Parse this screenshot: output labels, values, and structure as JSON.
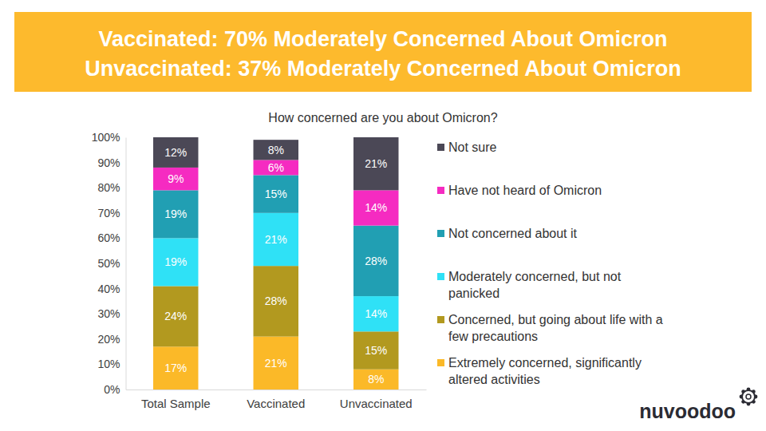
{
  "chart_data": {
    "type": "bar",
    "stacked": true,
    "title": [
      "Vaccinated: 70% Moderately Concerned About Omicron",
      "Unvaccinated: 37% Moderately Concerned About Omicron"
    ],
    "subtitle": "How concerned are you about Omicron?",
    "annotations": [
      "nuvoodoo"
    ],
    "categories": [
      "Total Sample",
      "Vaccinated",
      "Unvaccinated"
    ],
    "series": [
      {
        "name": "Extremely concerned, significantly altered activities",
        "color": "#fbb928",
        "values": [
          17,
          21,
          8
        ],
        "value_labels": [
          "17%",
          "21%",
          "8%"
        ]
      },
      {
        "name": "Concerned, but going about life with a few precautions",
        "color": "#b2991f",
        "values": [
          24,
          28,
          15
        ],
        "value_labels": [
          "24%",
          "28%",
          "15%"
        ]
      },
      {
        "name": "Moderately concerned, but not panicked",
        "color": "#2fe1f6",
        "values": [
          19,
          21,
          14
        ],
        "value_labels": [
          "19%",
          "21%",
          "14%"
        ]
      },
      {
        "name": "Not concerned about it",
        "color": "#219fb3",
        "values": [
          19,
          15,
          28
        ],
        "value_labels": [
          "19%",
          "15%",
          "28%"
        ]
      },
      {
        "name": "Have not heard of Omicron",
        "color": "#f52bc1",
        "values": [
          9,
          6,
          14
        ],
        "value_labels": [
          "9%",
          "6%",
          "14%"
        ]
      },
      {
        "name": "Not sure",
        "color": "#4b4856",
        "values": [
          12,
          8,
          21
        ],
        "value_labels": [
          "12%",
          "8%",
          "21%"
        ]
      }
    ],
    "ylim": [
      0,
      100
    ],
    "yticks": [
      {
        "value": 0,
        "label": "0%"
      },
      {
        "value": 10,
        "label": "10%"
      },
      {
        "value": 20,
        "label": "20%"
      },
      {
        "value": 30,
        "label": "30%"
      },
      {
        "value": 40,
        "label": "40%"
      },
      {
        "value": 50,
        "label": "50%"
      },
      {
        "value": 60,
        "label": "60%"
      },
      {
        "value": 70,
        "label": "70%"
      },
      {
        "value": 80,
        "label": "80%"
      },
      {
        "value": 90,
        "label": "90%"
      },
      {
        "value": 100,
        "label": "100%"
      }
    ],
    "grid": false,
    "legend": "right",
    "data_labels": true
  }
}
